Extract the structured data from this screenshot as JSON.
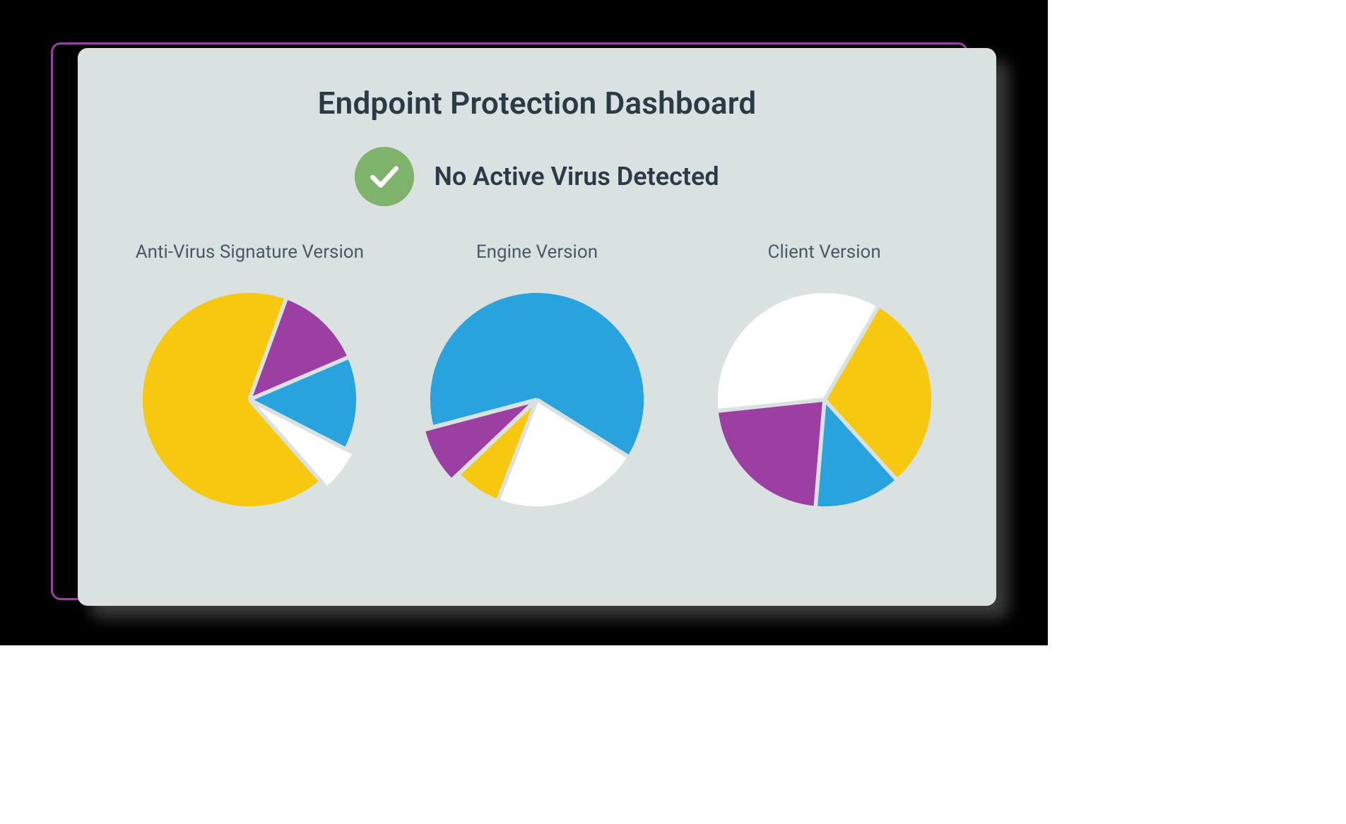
{
  "page": {
    "background_color": "#000000",
    "frame_border_color": "#9b3fa3",
    "card_background": "#d9e1e1",
    "card_shadow_color": "#3f3f3f",
    "title_color": "#2b3a45",
    "label_color": "#4a5a64"
  },
  "dashboard": {
    "title": "Endpoint Protection Dashboard",
    "status": {
      "text": "No Active Virus Detected",
      "badge_bg": "#7fb26a",
      "check_color": "#ffffff"
    }
  },
  "charts": [
    {
      "id": "av-signature",
      "label": "Anti-Virus Signature Version",
      "type": "pie",
      "radius": 160,
      "gap_color": "#d9e1e1",
      "gap_width": 6,
      "start_angle_deg": -70,
      "slices": [
        {
          "value": 13,
          "color": "#9b3fa3",
          "explode": 0
        },
        {
          "value": 14,
          "color": "#29a3dd",
          "explode": 0
        },
        {
          "value": 6,
          "color": "#ffffff",
          "explode": 14
        },
        {
          "value": 67,
          "color": "#f6c90e",
          "explode": 0
        }
      ]
    },
    {
      "id": "engine-version",
      "label": "Engine Version",
      "type": "pie",
      "radius": 160,
      "gap_color": "#d9e1e1",
      "gap_width": 6,
      "start_angle_deg": 32,
      "slices": [
        {
          "value": 22,
          "color": "#ffffff",
          "explode": 0
        },
        {
          "value": 7,
          "color": "#f6c90e",
          "explode": 0
        },
        {
          "value": 8,
          "color": "#9b3fa3",
          "explode": 14
        },
        {
          "value": 63,
          "color": "#29a3dd",
          "explode": 0
        }
      ]
    },
    {
      "id": "client-version",
      "label": "Client Version",
      "type": "pie",
      "radius": 160,
      "gap_color": "#d9e1e1",
      "gap_width": 6,
      "start_angle_deg": -60,
      "slices": [
        {
          "value": 30,
          "color": "#f6c90e",
          "explode": 0
        },
        {
          "value": 13,
          "color": "#29a3dd",
          "explode": 0
        },
        {
          "value": 22,
          "color": "#9b3fa3",
          "explode": 0
        },
        {
          "value": 35,
          "color": "#ffffff",
          "explode": 0
        }
      ]
    }
  ]
}
